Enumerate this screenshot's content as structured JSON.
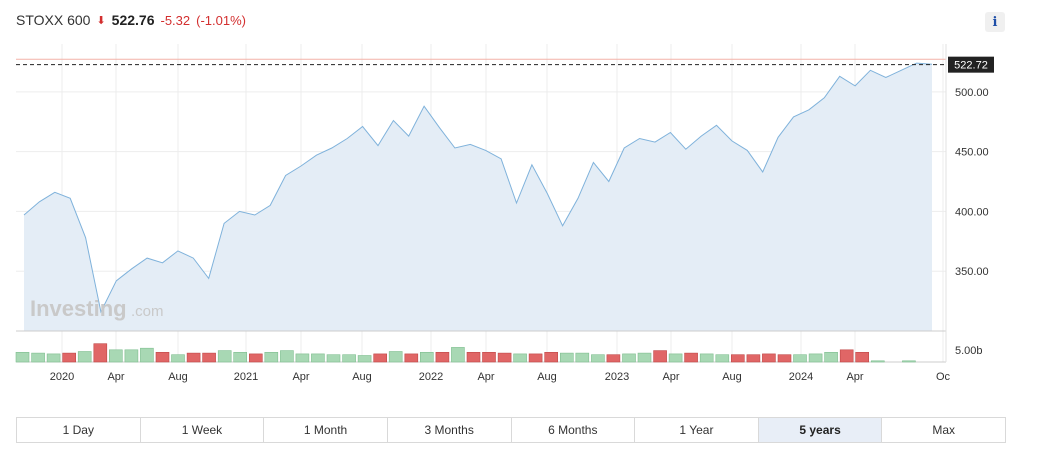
{
  "header": {
    "index_name": "STOXX 600",
    "arrow": "🡇",
    "price": "522.76",
    "change": "-5.32",
    "change_pct": "(-1.01%)"
  },
  "info_label": "i",
  "watermark": {
    "brand": "Investing",
    "suffix": ".com"
  },
  "last_price_label": "522.72",
  "volume_axis_label": "5.00b",
  "ranges": [
    "1 Day",
    "1 Week",
    "1 Month",
    "3 Months",
    "6 Months",
    "1 Year",
    "5 years",
    "Max"
  ],
  "active_range": "5 years",
  "colors": {
    "line": "#7fb2db",
    "area": "#e4edf6",
    "up_volume": "#a8d8b4",
    "down_volume": "#e06666",
    "negative": "#d32f2f",
    "grid": "#ededed"
  },
  "chart_data": {
    "type": "area",
    "price_series": {
      "x": [
        "2019-09",
        "2019-11",
        "2020-01",
        "2020-02",
        "2020-03",
        "2020-03b",
        "2020-04",
        "2020-05",
        "2020-06",
        "2020-07",
        "2020-08",
        "2020-09",
        "2020-10",
        "2020-11",
        "2020-12",
        "2021-01",
        "2021-02",
        "2021-03",
        "2021-04",
        "2021-05",
        "2021-06",
        "2021-07",
        "2021-08",
        "2021-09",
        "2021-10",
        "2021-11",
        "2021-12",
        "2022-01",
        "2022-02",
        "2022-03",
        "2022-04",
        "2022-05",
        "2022-06",
        "2022-07",
        "2022-08",
        "2022-09",
        "2022-10",
        "2022-11",
        "2022-12",
        "2023-01",
        "2023-02",
        "2023-03",
        "2023-04",
        "2023-05",
        "2023-06",
        "2023-07",
        "2023-08",
        "2023-09",
        "2023-10",
        "2023-11",
        "2023-12",
        "2024-01",
        "2024-02",
        "2024-03",
        "2024-04",
        "2024-05",
        "2024-06",
        "2024-07",
        "2024-08",
        "2024-09"
      ],
      "y": [
        397,
        408,
        416,
        411,
        378,
        316,
        342,
        352,
        361,
        357,
        367,
        361,
        344,
        390,
        400,
        397,
        405,
        430,
        438,
        447,
        453,
        461,
        471,
        455,
        476,
        463,
        488,
        470,
        453,
        456,
        451,
        444,
        407,
        439,
        415,
        388,
        411,
        441,
        425,
        453,
        461,
        458,
        466,
        452,
        463,
        472,
        459,
        451,
        433,
        462,
        479,
        485,
        495,
        513,
        505,
        518,
        512,
        518,
        524,
        523
      ]
    },
    "last_value": 522.72,
    "reference_value": 527.2,
    "y_ticks": [
      350,
      400,
      450,
      500
    ],
    "y_tick_labels": [
      "350.00",
      "400.00",
      "450.00",
      "500.00"
    ],
    "ylim": [
      300,
      540
    ],
    "x_tick_labels": [
      "2020",
      "Apr",
      "Aug",
      "2021",
      "Apr",
      "Aug",
      "2022",
      "Apr",
      "Aug",
      "2023",
      "Apr",
      "Aug",
      "2024",
      "Apr",
      "Oc"
    ],
    "volume": {
      "values": [
        2.4,
        2.2,
        2.0,
        2.2,
        2.6,
        4.5,
        3.0,
        3.0,
        3.4,
        2.4,
        1.8,
        2.2,
        2.2,
        2.8,
        2.4,
        2.0,
        2.4,
        2.8,
        2.0,
        2.0,
        1.8,
        1.8,
        1.6,
        2.0,
        2.6,
        2.0,
        2.4,
        2.4,
        3.6,
        2.4,
        2.4,
        2.2,
        2.0,
        2.0,
        2.4,
        2.2,
        2.2,
        1.8,
        1.8,
        2.0,
        2.2,
        2.8,
        2.0,
        2.2,
        2.0,
        1.8,
        1.8,
        1.8,
        2.0,
        1.8,
        1.8,
        2.0,
        2.4,
        3.0,
        2.4,
        0.3,
        0.0,
        0.3
      ],
      "up": [
        true,
        true,
        true,
        false,
        true,
        false,
        true,
        true,
        true,
        false,
        true,
        false,
        false,
        true,
        true,
        false,
        true,
        true,
        true,
        true,
        true,
        true,
        true,
        false,
        true,
        false,
        true,
        false,
        true,
        false,
        false,
        false,
        true,
        false,
        false,
        true,
        true,
        true,
        false,
        true,
        true,
        false,
        true,
        false,
        true,
        true,
        false,
        false,
        false,
        false,
        true,
        true,
        true,
        false,
        false,
        true,
        true,
        true
      ],
      "axis_max": 5.0
    },
    "grid": true,
    "legend": "none"
  }
}
